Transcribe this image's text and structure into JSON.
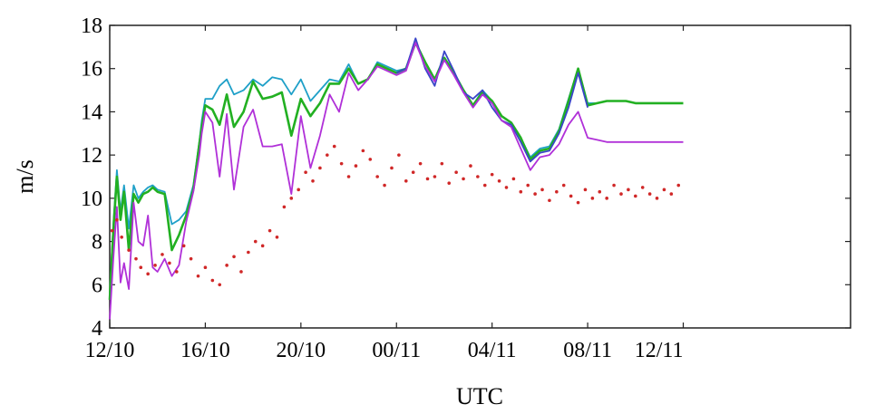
{
  "chart_data": {
    "type": "line",
    "title": "",
    "xlabel": "UTC",
    "ylabel": "m/s",
    "ylim": [
      4,
      18
    ],
    "xlim": [
      0,
      31
    ],
    "yticks": [
      4,
      6,
      8,
      10,
      12,
      14,
      16,
      18
    ],
    "xticks": [
      {
        "x": 0,
        "label": "12/10"
      },
      {
        "x": 4,
        "label": "16/10"
      },
      {
        "x": 8,
        "label": "20/10"
      },
      {
        "x": 12,
        "label": "00/11"
      },
      {
        "x": 16,
        "label": "04/11"
      },
      {
        "x": 20,
        "label": "08/11"
      },
      {
        "x": 24,
        "label": "12/11"
      }
    ],
    "grid": false,
    "series": [
      {
        "color": "#1fa0c8",
        "style": "line",
        "x": [
          0.0,
          0.15,
          0.3,
          0.45,
          0.6,
          0.8,
          1.0,
          1.2,
          1.4,
          1.6,
          1.8,
          2.0,
          2.3,
          2.6,
          2.9,
          3.2,
          3.5,
          3.75,
          3.85,
          4.0,
          4.3,
          4.6,
          4.9,
          5.2,
          5.6,
          6.0,
          6.4,
          6.8,
          7.2,
          7.6,
          8.0,
          8.4,
          8.8,
          9.2,
          9.6,
          10.0,
          10.4,
          10.8,
          11.2,
          11.6,
          12.0,
          12.4,
          12.8,
          13.2,
          13.6,
          14.0,
          14.4,
          14.8,
          15.2,
          15.6,
          16.0,
          16.4,
          16.8,
          17.2,
          17.6,
          18.0,
          18.4,
          18.8,
          19.2,
          19.6,
          20.0,
          20.4,
          20.8,
          21.2,
          21.6,
          22.0,
          22.4,
          22.8,
          23.2,
          23.6,
          24.0
        ],
        "y": [
          5.5,
          8.8,
          11.3,
          9.4,
          10.6,
          8.6,
          10.6,
          10.0,
          10.3,
          10.5,
          10.6,
          10.4,
          10.3,
          8.8,
          9.0,
          9.4,
          10.6,
          12.6,
          13.6,
          14.6,
          14.6,
          15.2,
          15.5,
          14.8,
          15.0,
          15.5,
          15.2,
          15.6,
          15.5,
          14.8,
          15.5,
          14.5,
          15.0,
          15.5,
          15.4,
          16.2,
          15.3,
          15.5,
          16.3,
          16.1,
          15.9,
          16.0,
          17.2,
          16.3,
          15.5,
          16.5,
          15.8,
          15.0,
          14.3,
          15.0,
          14.5,
          13.8,
          13.5,
          12.8,
          11.9,
          12.3,
          12.4,
          13.2,
          14.6,
          16.0,
          14.4,
          14.4,
          14.5,
          14.5,
          14.5,
          14.4,
          14.4,
          14.4,
          14.4,
          14.4,
          14.4
        ]
      },
      {
        "color": "#22b022",
        "style": "line",
        "x": [
          0.0,
          0.15,
          0.3,
          0.45,
          0.6,
          0.8,
          1.0,
          1.2,
          1.4,
          1.6,
          1.8,
          2.0,
          2.3,
          2.6,
          2.9,
          3.2,
          3.5,
          3.75,
          3.85,
          4.0,
          4.3,
          4.6,
          4.9,
          5.2,
          5.6,
          6.0,
          6.4,
          6.8,
          7.2,
          7.6,
          8.0,
          8.4,
          8.8,
          9.2,
          9.6,
          10.0,
          10.4,
          10.8,
          11.2,
          11.6,
          12.0,
          12.4,
          12.8,
          13.2,
          13.6,
          14.0,
          14.4,
          14.8,
          15.2,
          15.6,
          16.0,
          16.4,
          16.8,
          17.2,
          17.6,
          18.0,
          18.4,
          18.8,
          19.2,
          19.6,
          20.0,
          20.4,
          20.8,
          21.2,
          21.6,
          22.0,
          22.4,
          22.8,
          23.2,
          23.6,
          24.0
        ],
        "y": [
          5.3,
          8.5,
          11.0,
          9.0,
          10.3,
          7.6,
          10.2,
          9.8,
          10.2,
          10.3,
          10.5,
          10.3,
          10.2,
          7.6,
          8.3,
          9.2,
          10.4,
          12.5,
          13.3,
          14.3,
          14.1,
          13.4,
          14.8,
          13.3,
          14.0,
          15.4,
          14.6,
          14.7,
          14.9,
          12.9,
          14.6,
          13.8,
          14.4,
          15.3,
          15.3,
          16.0,
          15.3,
          15.5,
          16.2,
          16.0,
          15.8,
          16.0,
          17.2,
          16.3,
          15.5,
          16.5,
          15.8,
          15.0,
          14.3,
          14.9,
          14.5,
          13.8,
          13.5,
          12.8,
          11.8,
          12.2,
          12.3,
          13.1,
          14.5,
          16.0,
          14.3,
          14.4,
          14.5,
          14.5,
          14.5,
          14.4,
          14.4,
          14.4,
          14.4,
          14.4,
          14.4
        ]
      },
      {
        "color": "#3a46c8",
        "style": "line",
        "x": [
          12.0,
          12.4,
          12.8,
          13.2,
          13.6,
          14.0,
          14.4,
          14.8,
          15.2,
          15.6,
          16.0,
          16.4,
          16.8,
          17.2,
          17.6,
          18.0,
          18.4,
          18.8,
          19.2,
          19.6,
          20.0
        ],
        "y": [
          15.8,
          16.0,
          17.4,
          16.0,
          15.2,
          16.8,
          15.9,
          14.9,
          14.6,
          15.0,
          14.2,
          13.6,
          13.4,
          12.6,
          11.7,
          12.1,
          12.2,
          13.0,
          14.2,
          15.8,
          14.2
        ]
      },
      {
        "color": "#b030d8",
        "style": "line",
        "x": [
          0.0,
          0.15,
          0.3,
          0.45,
          0.6,
          0.8,
          1.0,
          1.2,
          1.4,
          1.6,
          1.8,
          2.0,
          2.3,
          2.6,
          2.9,
          3.2,
          3.5,
          3.75,
          3.85,
          4.0,
          4.3,
          4.6,
          4.9,
          5.2,
          5.6,
          6.0,
          6.4,
          6.8,
          7.2,
          7.6,
          8.0,
          8.4,
          8.8,
          9.2,
          9.6,
          10.0,
          10.4,
          10.8,
          11.2,
          11.6,
          12.0,
          12.4,
          12.8,
          13.2,
          13.6,
          14.0,
          14.4,
          14.8,
          15.2,
          15.6,
          16.0,
          16.4,
          16.8,
          17.2,
          17.6,
          18.0,
          18.4,
          18.8,
          19.2,
          19.6,
          20.0,
          20.4,
          20.8,
          21.2,
          21.6,
          22.0,
          22.4,
          22.8,
          23.2,
          23.6,
          24.0
        ],
        "y": [
          4.4,
          7.2,
          9.6,
          6.1,
          7.0,
          5.8,
          9.8,
          8.0,
          7.8,
          9.2,
          6.8,
          6.6,
          7.2,
          6.4,
          6.9,
          8.9,
          10.3,
          12.0,
          13.0,
          14.0,
          13.5,
          11.0,
          13.9,
          10.4,
          13.3,
          14.1,
          12.4,
          12.4,
          12.5,
          10.2,
          13.8,
          11.4,
          12.9,
          14.8,
          14.0,
          15.8,
          15.0,
          15.5,
          16.1,
          15.9,
          15.7,
          15.9,
          17.2,
          16.1,
          15.4,
          16.4,
          15.7,
          14.9,
          14.2,
          14.8,
          14.4,
          13.6,
          13.3,
          12.3,
          11.3,
          11.9,
          12.0,
          12.5,
          13.4,
          14.0,
          12.8,
          12.7,
          12.6,
          12.6,
          12.6,
          12.6,
          12.6,
          12.6,
          12.6,
          12.6,
          12.6
        ]
      },
      {
        "color": "#d02828",
        "style": "scatter",
        "x": [
          0.1,
          0.3,
          0.5,
          0.8,
          1.1,
          1.3,
          1.6,
          1.9,
          2.2,
          2.5,
          2.8,
          3.1,
          3.4,
          3.7,
          4.0,
          4.3,
          4.6,
          4.9,
          5.2,
          5.5,
          5.8,
          6.1,
          6.4,
          6.7,
          7.0,
          7.3,
          7.6,
          7.9,
          8.2,
          8.5,
          8.8,
          9.1,
          9.4,
          9.7,
          10.0,
          10.3,
          10.6,
          10.9,
          11.2,
          11.5,
          11.8,
          12.1,
          12.4,
          12.7,
          13.0,
          13.3,
          13.6,
          13.9,
          14.2,
          14.5,
          14.8,
          15.1,
          15.4,
          15.7,
          16.0,
          16.3,
          16.6,
          16.9,
          17.2,
          17.5,
          17.8,
          18.1,
          18.4,
          18.7,
          19.0,
          19.3,
          19.6,
          19.9,
          20.2,
          20.5,
          20.8,
          21.1,
          21.4,
          21.7,
          22.0,
          22.3,
          22.6,
          22.9,
          23.2,
          23.5,
          23.8
        ],
        "y": [
          8.5,
          9.0,
          8.2,
          7.6,
          7.2,
          6.8,
          6.5,
          6.9,
          7.4,
          7.0,
          6.6,
          7.8,
          7.2,
          6.4,
          6.8,
          6.2,
          6.0,
          6.9,
          7.3,
          6.6,
          7.5,
          8.0,
          7.8,
          8.5,
          8.2,
          9.6,
          10.0,
          10.4,
          11.2,
          10.8,
          11.4,
          12.0,
          12.4,
          11.6,
          11.0,
          11.5,
          12.2,
          11.8,
          11.0,
          10.6,
          11.4,
          12.0,
          10.8,
          11.2,
          11.6,
          10.9,
          11.0,
          11.6,
          10.7,
          11.2,
          10.9,
          11.5,
          11.0,
          10.6,
          11.1,
          10.8,
          10.5,
          10.9,
          10.3,
          10.6,
          10.2,
          10.4,
          9.9,
          10.3,
          10.6,
          10.1,
          9.8,
          10.4,
          10.0,
          10.3,
          10.0,
          10.6,
          10.2,
          10.4,
          10.1,
          10.5,
          10.2,
          10.0,
          10.4,
          10.2,
          10.6
        ]
      }
    ]
  }
}
